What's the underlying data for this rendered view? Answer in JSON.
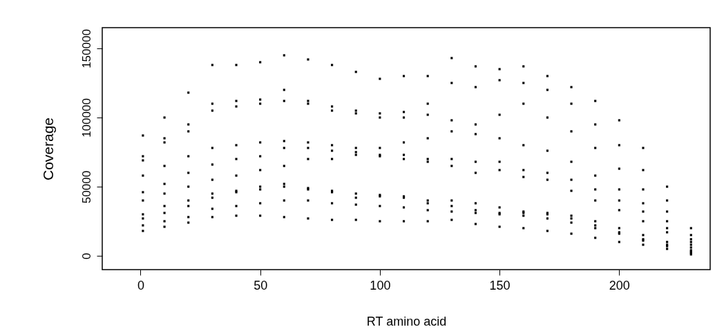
{
  "chart_data": {
    "type": "scatter",
    "xlabel": "RT amino acid",
    "ylabel": "Coverage",
    "marker": "square",
    "grid": false,
    "legend": false,
    "xlim": [
      -16,
      238
    ],
    "xticks": [
      0,
      50,
      100,
      150,
      200
    ],
    "ylim": [
      -10000,
      165000
    ],
    "yticks": [
      0,
      50000,
      100000,
      150000
    ],
    "x": [
      1,
      10,
      20,
      30,
      40,
      50,
      60,
      70,
      80,
      90,
      100,
      110,
      120,
      130,
      140,
      150,
      160,
      170,
      180,
      190,
      200,
      210,
      220,
      230
    ],
    "series": [
      {
        "color": "#000000",
        "values": [
          87000,
          100000,
          118000,
          138000,
          138000,
          140000,
          145000,
          142000,
          138000,
          133000,
          128000,
          130000,
          130000,
          143000,
          137000,
          135000,
          137000,
          130000,
          122000,
          112000,
          98000,
          78000,
          50000,
          20000
        ]
      },
      {
        "color": "#000000",
        "values": [
          72000,
          85000,
          95000,
          110000,
          112000,
          113000,
          120000,
          112000,
          108000,
          105000,
          103000,
          104000,
          110000,
          125000,
          122000,
          127000,
          125000,
          120000,
          110000,
          95000,
          80000,
          62000,
          40000,
          15000
        ]
      },
      {
        "color": "#000000",
        "values": [
          69000,
          82000,
          90000,
          105000,
          108000,
          110000,
          112000,
          110000,
          105000,
          103000,
          100000,
          100000,
          102000,
          98000,
          95000,
          102000,
          110000,
          100000,
          90000,
          78000,
          63000,
          48000,
          32000,
          12000
        ]
      },
      {
        "color": "#000000",
        "values": [
          58000,
          65000,
          72000,
          78000,
          80000,
          82000,
          83000,
          82000,
          80000,
          78000,
          78000,
          82000,
          85000,
          90000,
          88000,
          85000,
          80000,
          76000,
          68000,
          58000,
          48000,
          38000,
          25000,
          10000
        ]
      },
      {
        "color": "#000000",
        "values": [
          46000,
          52000,
          60000,
          66000,
          70000,
          72000,
          78000,
          78000,
          76000,
          75000,
          73000,
          73000,
          70000,
          70000,
          68000,
          68000,
          62000,
          60000,
          55000,
          48000,
          40000,
          32000,
          20000,
          8000
        ]
      },
      {
        "color": "#000000",
        "values": [
          40000,
          45000,
          50000,
          55000,
          58000,
          62000,
          65000,
          70000,
          70000,
          73000,
          72000,
          70000,
          68000,
          65000,
          60000,
          62000,
          57000,
          55000,
          47000,
          40000,
          33000,
          25000,
          17000,
          6000
        ]
      },
      {
        "color": "#000000",
        "values": [
          30000,
          36000,
          40000,
          45000,
          47000,
          50000,
          50000,
          48000,
          46000,
          45000,
          44000,
          43000,
          40000,
          40000,
          38000,
          35000,
          32000,
          31000,
          29000,
          25000,
          20000,
          15000,
          10000,
          4000
        ]
      },
      {
        "color": "#000000",
        "values": [
          27000,
          31000,
          36000,
          42000,
          46000,
          48000,
          52000,
          49000,
          47000,
          42000,
          43000,
          42000,
          38000,
          36000,
          33000,
          31000,
          31000,
          30000,
          27000,
          22000,
          17000,
          12000,
          8000,
          3000
        ]
      },
      {
        "color": "#000000",
        "values": [
          22000,
          25000,
          28000,
          34000,
          36000,
          38000,
          40000,
          40000,
          38000,
          37000,
          36000,
          35000,
          33000,
          32000,
          31000,
          30000,
          29000,
          27000,
          24000,
          20000,
          16000,
          11000,
          7000,
          2000
        ]
      },
      {
        "color": "#000000",
        "values": [
          18000,
          21000,
          24000,
          28000,
          29000,
          29000,
          28000,
          27000,
          26000,
          26000,
          25000,
          25000,
          25000,
          26000,
          23000,
          21000,
          20000,
          18000,
          16000,
          13000,
          10000,
          8000,
          5000,
          1000
        ]
      }
    ]
  }
}
